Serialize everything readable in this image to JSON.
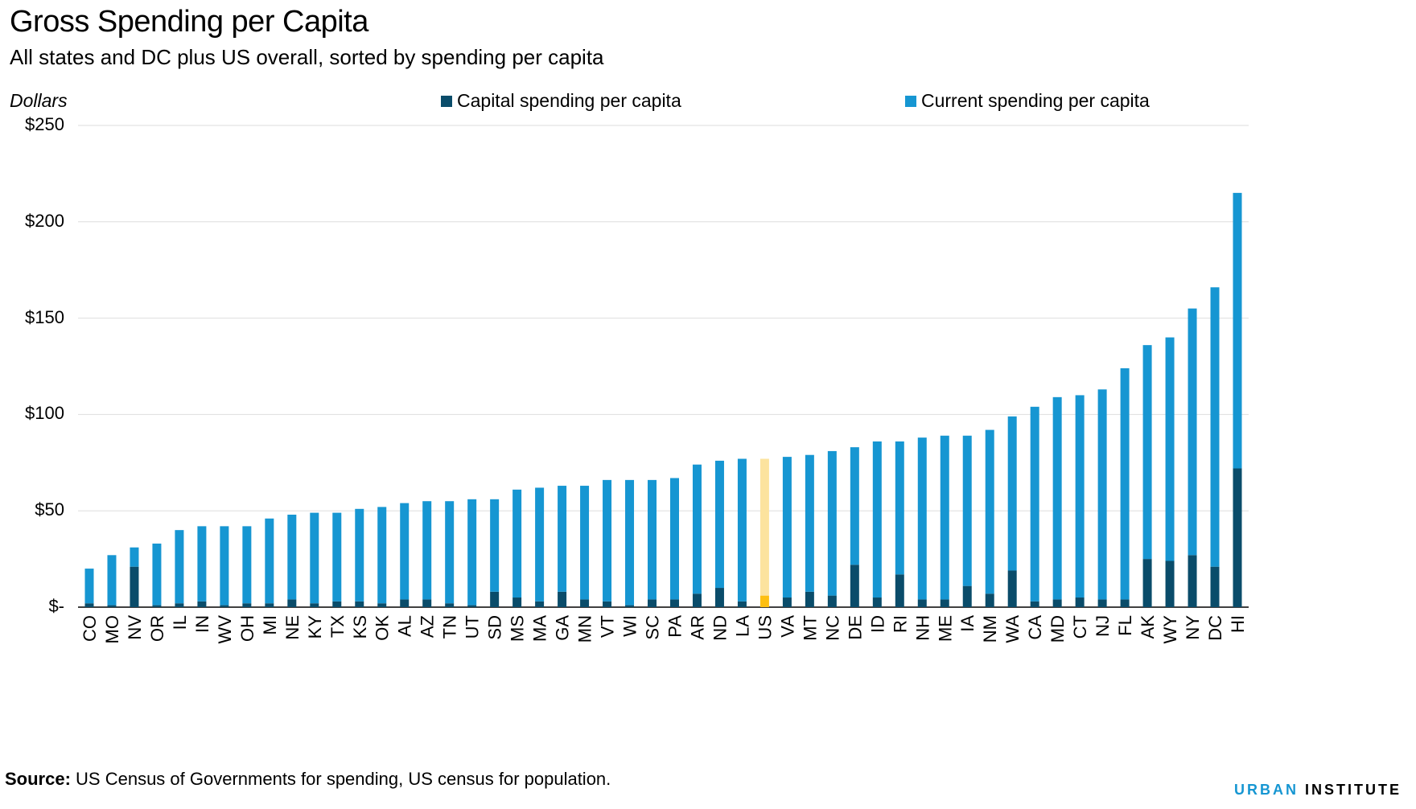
{
  "title": "Gross Spending per Capita",
  "subtitle": "All states and DC plus US overall, sorted by spending per capita",
  "unit_label": "Dollars",
  "legend": {
    "capital": "Capital spending per capita",
    "current": "Current spending per capita"
  },
  "source_label": "Source:",
  "source_text": " US Census of Governments for spending, US census for population.",
  "brand": {
    "part1": "URBAN",
    "part2": "INSTITUTE"
  },
  "colors": {
    "capital": "#0a4c6a",
    "current": "#1696d2",
    "us_capital": "#fdbf11",
    "us_current": "#fce39e",
    "grid": "#dedede"
  },
  "chart_data": {
    "type": "bar",
    "stacked": true,
    "ylim": [
      0,
      250
    ],
    "y_ticks": [
      {
        "value": 250,
        "label": "$250"
      },
      {
        "value": 200,
        "label": "$200"
      },
      {
        "value": 150,
        "label": "$150"
      },
      {
        "value": 100,
        "label": "$100"
      },
      {
        "value": 50,
        "label": "$50"
      },
      {
        "value": 0,
        "label": "$-"
      }
    ],
    "grid": true,
    "highlight_category": "US",
    "categories": [
      "CO",
      "MO",
      "NV",
      "OR",
      "IL",
      "IN",
      "WV",
      "OH",
      "MI",
      "NE",
      "KY",
      "TX",
      "KS",
      "OK",
      "AL",
      "AZ",
      "TN",
      "UT",
      "SD",
      "MS",
      "MA",
      "GA",
      "MN",
      "VT",
      "WI",
      "SC",
      "PA",
      "AR",
      "ND",
      "LA",
      "US",
      "VA",
      "MT",
      "NC",
      "DE",
      "ID",
      "RI",
      "NH",
      "ME",
      "IA",
      "NM",
      "WA",
      "CA",
      "MD",
      "CT",
      "NJ",
      "FL",
      "AK",
      "WY",
      "NY",
      "DC",
      "HI"
    ],
    "series": [
      {
        "name": "Capital spending per capita",
        "values": [
          2,
          1,
          21,
          1,
          2,
          3,
          1,
          2,
          2,
          4,
          2,
          3,
          3,
          2,
          4,
          4,
          2,
          1,
          8,
          5,
          3,
          8,
          4,
          3,
          1,
          4,
          4,
          7,
          10,
          3,
          6,
          5,
          8,
          6,
          22,
          5,
          17,
          4,
          4,
          11,
          7,
          19,
          3,
          4,
          5,
          4,
          4,
          25,
          24,
          27,
          21,
          72
        ]
      },
      {
        "name": "Current spending per capita",
        "values": [
          18,
          26,
          10,
          32,
          38,
          39,
          41,
          40,
          44,
          44,
          47,
          46,
          48,
          50,
          50,
          51,
          53,
          55,
          48,
          56,
          59,
          55,
          59,
          63,
          65,
          62,
          63,
          67,
          66,
          74,
          71,
          73,
          71,
          75,
          61,
          81,
          69,
          84,
          85,
          78,
          85,
          80,
          101,
          105,
          105,
          109,
          120,
          111,
          116,
          128,
          145,
          143
        ]
      }
    ]
  }
}
